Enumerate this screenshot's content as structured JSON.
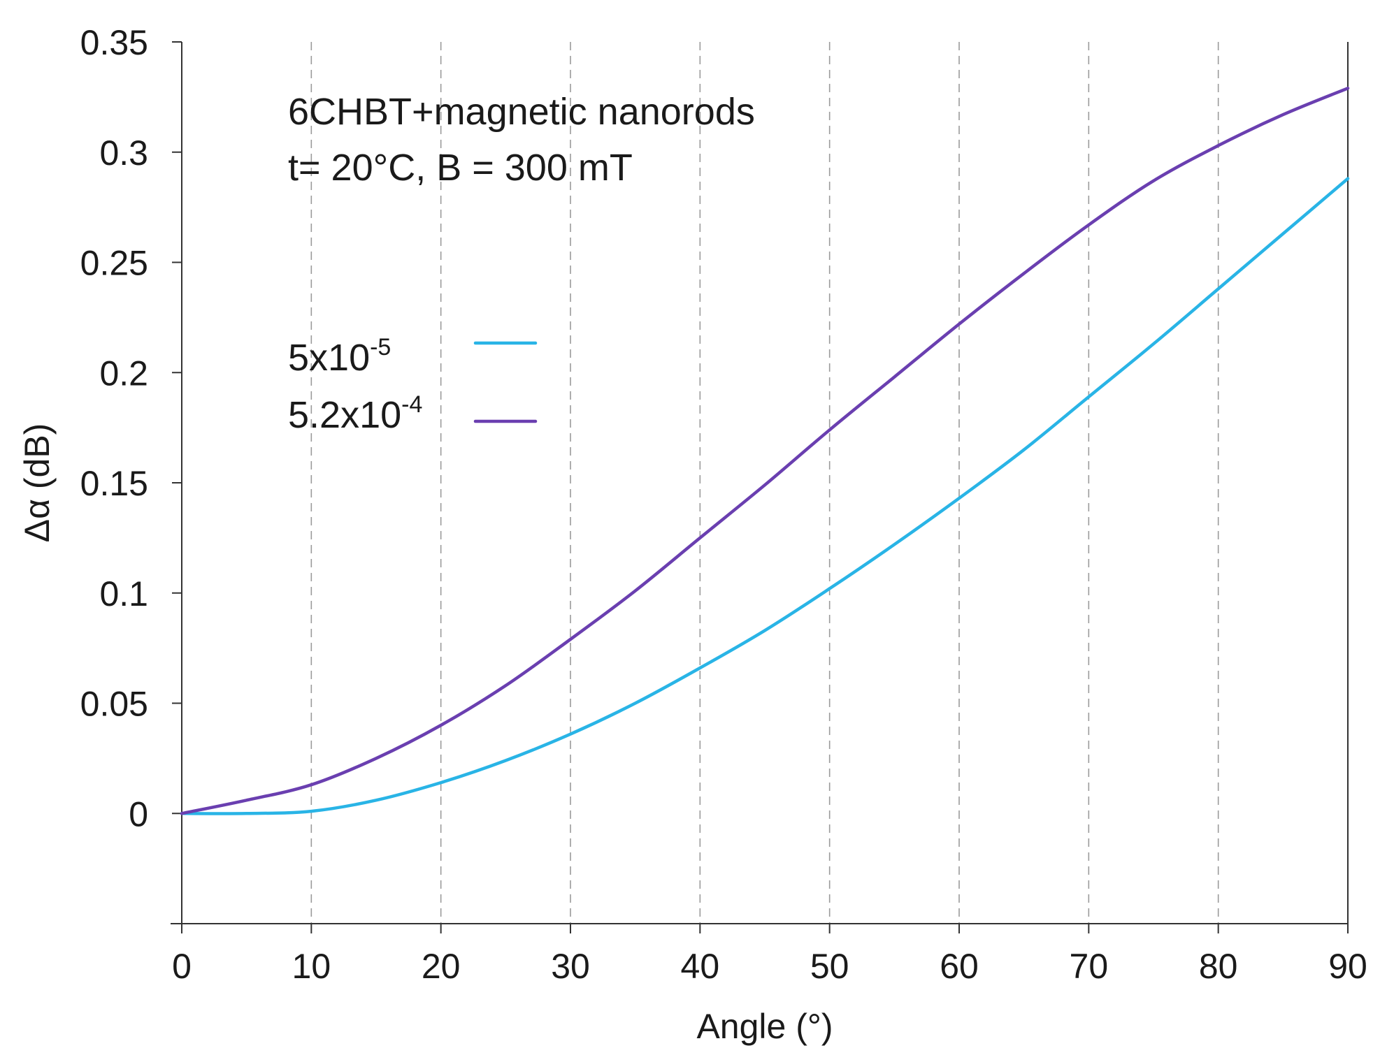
{
  "chart_data": {
    "type": "line",
    "title": "",
    "annotations": [
      "6CHBT+magnetic nanorods",
      "t= 20°C, B = 300 mT"
    ],
    "xlabel": "Angle (°)",
    "ylabel": "Δα (dB)",
    "xlim": [
      0,
      90
    ],
    "ylim": [
      -0.05,
      0.35
    ],
    "x_ticks": [
      0,
      10,
      20,
      30,
      40,
      50,
      60,
      70,
      80,
      90
    ],
    "x_tick_labels": [
      "0",
      "10",
      "20",
      "30",
      "40",
      "50",
      "60",
      "70",
      "80",
      "90"
    ],
    "y_ticks": [
      0,
      0.05,
      0.1,
      0.15,
      0.2,
      0.25,
      0.3,
      0.35
    ],
    "y_tick_labels": [
      "0",
      "0.05",
      "0.1",
      "0.15",
      "0.2",
      "0.25",
      "0.3",
      "0.35"
    ],
    "grid": "vertical dashed",
    "legend_position": "left-middle",
    "x": [
      0,
      5,
      10,
      15,
      20,
      25,
      30,
      35,
      40,
      45,
      50,
      55,
      60,
      65,
      70,
      75,
      80,
      85,
      90
    ],
    "series": [
      {
        "name": "5x10-5",
        "label_base": "5x10",
        "label_exp": "-5",
        "color": "#29b4e6",
        "values": [
          0,
          0,
          0.001,
          0.006,
          0.014,
          0.024,
          0.036,
          0.05,
          0.066,
          0.083,
          0.102,
          0.122,
          0.143,
          0.165,
          0.189,
          0.213,
          0.238,
          0.263,
          0.288
        ]
      },
      {
        "name": "5.2x10-4",
        "label_base": "5.2x10",
        "label_exp": "-4",
        "color": "#6a3fb0",
        "values": [
          0,
          0.006,
          0.013,
          0.025,
          0.04,
          0.058,
          0.079,
          0.101,
          0.125,
          0.149,
          0.174,
          0.198,
          0.222,
          0.245,
          0.267,
          0.287,
          0.303,
          0.317,
          0.329
        ]
      }
    ]
  }
}
